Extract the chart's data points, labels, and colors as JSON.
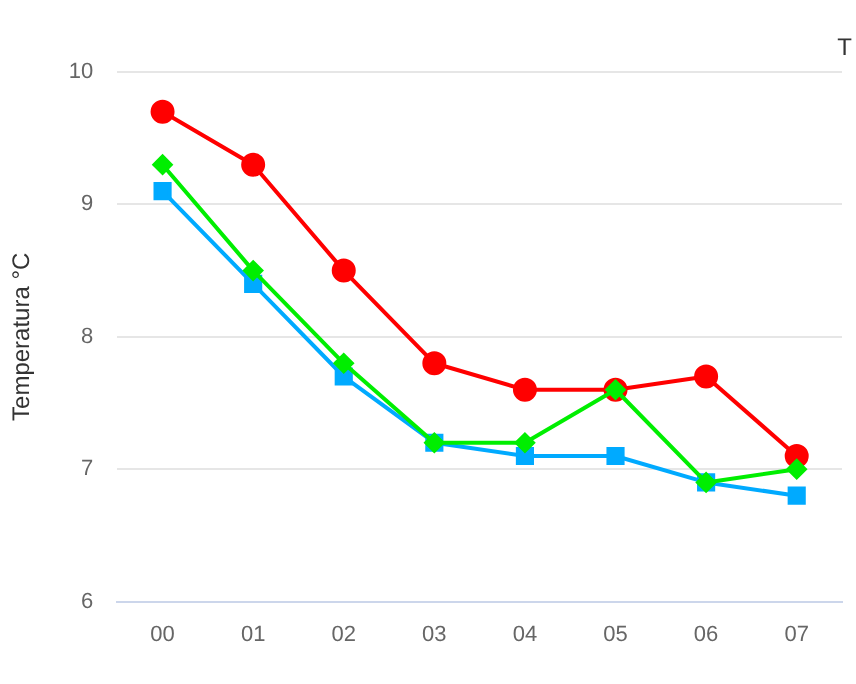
{
  "chart_data": {
    "type": "line",
    "categories": [
      "00",
      "01",
      "02",
      "03",
      "04",
      "05",
      "06",
      "07"
    ],
    "ylabel": "Temperatura °C",
    "annotations": [
      "T"
    ],
    "series": [
      {
        "color": "#ff0000",
        "marker": "circle",
        "values": [
          9.7,
          9.3,
          8.5,
          7.8,
          7.6,
          7.6,
          7.7,
          7.1
        ]
      },
      {
        "color": "#00ee00",
        "marker": "diamond",
        "values": [
          9.3,
          8.5,
          7.8,
          7.2,
          7.2,
          7.6,
          6.9,
          7.0
        ]
      },
      {
        "color": "#00aaff",
        "marker": "square",
        "values": [
          9.1,
          8.4,
          7.7,
          7.2,
          7.1,
          7.1,
          6.9,
          6.8
        ]
      }
    ],
    "ylim": [
      6,
      10
    ],
    "yticks": [
      6,
      7,
      8,
      9,
      10
    ],
    "grid": "y",
    "legend": false,
    "line_style": "solid"
  }
}
